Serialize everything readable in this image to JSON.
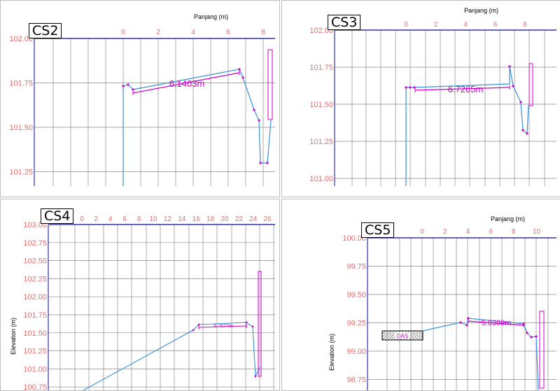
{
  "panels": [
    {
      "id": "CS2",
      "title": "CS2",
      "x_label": "Panjang (m)",
      "y_label": "",
      "distance_label": "6.1403m",
      "x_ticks": [
        "0",
        "2",
        "4",
        "6",
        "8"
      ],
      "y_ticks": [
        "102.00",
        "101.75",
        "101.50",
        "101.25"
      ]
    },
    {
      "id": "CS3",
      "title": "CS3",
      "x_label": "Panjang (m)",
      "y_label": "",
      "distance_label": "6.7265m",
      "x_ticks": [
        "0",
        "2",
        "4",
        "6",
        "8"
      ],
      "y_ticks": [
        "102.00",
        "101.75",
        "101.50",
        "101.25",
        "101.00"
      ]
    },
    {
      "id": "CS4",
      "title": "CS4",
      "x_label": "",
      "y_label": "Elevation (m)",
      "distance_label": "6.7677m",
      "x_ticks": [
        "0",
        "2",
        "4",
        "6",
        "8",
        "10",
        "12",
        "14",
        "16",
        "18",
        "20",
        "22",
        "24",
        "26"
      ],
      "y_ticks": [
        "103.00",
        "102.75",
        "102.50",
        "102.25",
        "102.00",
        "101.75",
        "101.50",
        "101.25",
        "101.00",
        "100.75"
      ]
    },
    {
      "id": "CS5",
      "title": "CS5",
      "x_label": "Panjang (m)",
      "y_label": "Elevation (m)",
      "distance_label": "5.0309m",
      "box_label": "DAS",
      "x_ticks": [
        "0",
        "2",
        "4",
        "6",
        "8",
        "10"
      ],
      "y_ticks": [
        "100.00",
        "99.75",
        "99.50",
        "99.25",
        "99.00",
        "98.75"
      ]
    }
  ],
  "colors": {
    "profile": "#3a8fd6",
    "dimension": "#cc00cc",
    "tick_label": "#e07070",
    "grid": "#888888",
    "frame": "#3333aa"
  }
}
